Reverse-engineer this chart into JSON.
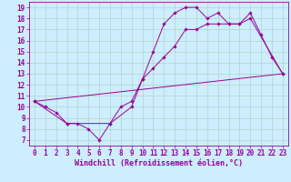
{
  "xlabel": "Windchill (Refroidissement éolien,°C)",
  "background_color": "#cceeff",
  "grid_color": "#aaccbb",
  "line_color": "#990099",
  "xlim": [
    -0.5,
    23.5
  ],
  "ylim": [
    6.5,
    19.5
  ],
  "xticks": [
    0,
    1,
    2,
    3,
    4,
    5,
    6,
    7,
    8,
    9,
    10,
    11,
    12,
    13,
    14,
    15,
    16,
    17,
    18,
    19,
    20,
    21,
    22,
    23
  ],
  "yticks": [
    7,
    8,
    9,
    10,
    11,
    12,
    13,
    14,
    15,
    16,
    17,
    18,
    19
  ],
  "line1_x": [
    0,
    1,
    2,
    3,
    4,
    5,
    6,
    7,
    8,
    9,
    10,
    11,
    12,
    13,
    14,
    15,
    16,
    17,
    18,
    19,
    20,
    21,
    22,
    23
  ],
  "line1_y": [
    10.5,
    10.0,
    9.5,
    8.5,
    8.5,
    8.0,
    7.0,
    8.5,
    10.0,
    10.5,
    12.5,
    15.0,
    17.5,
    18.5,
    19.0,
    19.0,
    18.0,
    18.5,
    17.5,
    17.5,
    18.5,
    16.5,
    14.5,
    13.0
  ],
  "line2_x": [
    0,
    3,
    7,
    9,
    10,
    11,
    12,
    13,
    14,
    15,
    16,
    17,
    18,
    19,
    20,
    23
  ],
  "line2_y": [
    10.5,
    8.5,
    8.5,
    10.0,
    12.5,
    13.5,
    14.5,
    15.5,
    17.0,
    17.0,
    17.5,
    17.5,
    17.5,
    17.5,
    18.0,
    13.0
  ],
  "line3_x": [
    0,
    23
  ],
  "line3_y": [
    10.5,
    13.0
  ],
  "marker_size": 1.8,
  "line_width": 0.7,
  "tick_fontsize": 5.5,
  "xlabel_fontsize": 6.0
}
